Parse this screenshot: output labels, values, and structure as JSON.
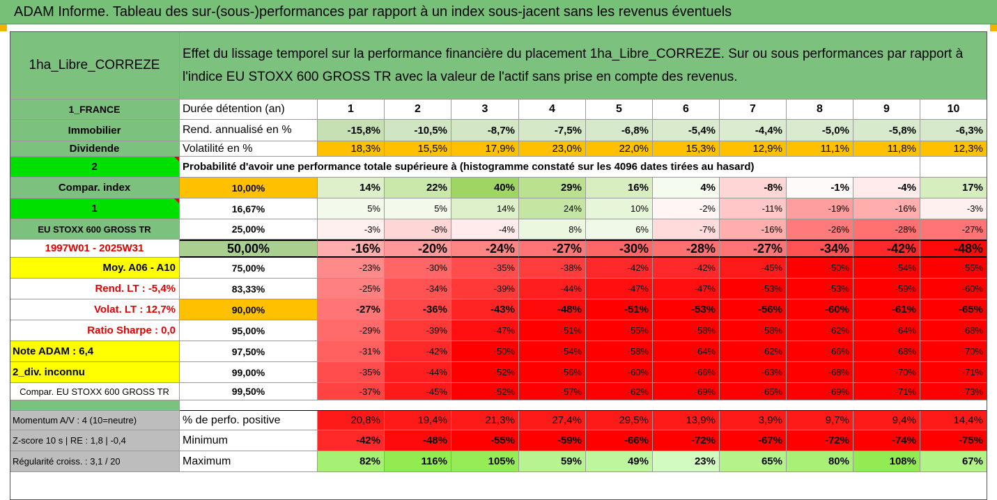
{
  "title": "ADAM Informe. Tableau des sur-(sous-)performances par rapport à un index sous-jacent sans les revenus éventuels",
  "header": {
    "fund": "1ha_Libre_CORREZE",
    "description_line1": "Effet du lissage temporel sur la performance financière du placement 1ha_Libre_CORREZE. Sur ou sous performances par rapport à",
    "description_line2": "l'indice EU STOXX 600 GROSS TR avec la valeur de l'actif sans prise en compte des revenus."
  },
  "left_labels": {
    "country": "1_FRANCE",
    "category": "Immobilier",
    "dividend": "Dividende",
    "two": "2",
    "compar_index": "Compar. index",
    "one": "1",
    "index_name": "EU STOXX 600 GROSS TR",
    "period": "1997W01 - 2025W31",
    "moy": "Moy. A06 - A10",
    "rend_lt": "Rend. LT :   -5,4%",
    "volat_lt": "Volat. LT :   12,7%",
    "sharpe": "Ratio Sharpe :    0,0",
    "note": "Note ADAM : 6,4",
    "div": "2_div. inconnu",
    "compar_full": "Compar. EU STOXX 600 GROSS TR",
    "momentum": "Momentum A/V : 4 (10=neutre)",
    "zscore": "Z-score 10 s  |  RE : 1,8  |  -0,4",
    "regularite": "Régularité croiss. : 3,1 / 20"
  },
  "row_labels": {
    "duree": "Durée détention (an)",
    "rend": "Rend. annualisé en %",
    "volat": "Volatilité en %",
    "probability": "Probabilité d'avoir une performance totale supérieure à (histogramme constaté sur les 4096 dates tirées au hasard)",
    "perfo_pos": "% de perfo. positive",
    "minimum": "Minimum",
    "maximum": "Maximum"
  },
  "years": [
    "1",
    "2",
    "3",
    "4",
    "5",
    "6",
    "7",
    "8",
    "9",
    "10"
  ],
  "rend": [
    "-15,8%",
    "-10,5%",
    "-8,7%",
    "-7,5%",
    "-6,8%",
    "-5,4%",
    "-4,4%",
    "-5,0%",
    "-5,8%",
    "-6,3%"
  ],
  "volat": [
    "18,3%",
    "15,5%",
    "17,9%",
    "23,0%",
    "22,0%",
    "15,3%",
    "12,9%",
    "11,1%",
    "11,8%",
    "12,3%"
  ],
  "percentiles": [
    {
      "p": "10,00%",
      "values": [
        "14%",
        "22%",
        "40%",
        "29%",
        "16%",
        "4%",
        "-8%",
        "-1%",
        "-4%",
        "17%"
      ]
    },
    {
      "p": "16,67%",
      "values": [
        "5%",
        "5%",
        "14%",
        "24%",
        "10%",
        "-2%",
        "-11%",
        "-19%",
        "-16%",
        "-3%"
      ]
    },
    {
      "p": "25,00%",
      "values": [
        "-3%",
        "-8%",
        "-4%",
        "8%",
        "6%",
        "-7%",
        "-16%",
        "-26%",
        "-28%",
        "-27%"
      ]
    },
    {
      "p": "50,00%",
      "values": [
        "-16%",
        "-20%",
        "-24%",
        "-27%",
        "-30%",
        "-28%",
        "-27%",
        "-34%",
        "-42%",
        "-48%"
      ]
    },
    {
      "p": "75,00%",
      "values": [
        "-23%",
        "-30%",
        "-35%",
        "-38%",
        "-42%",
        "-42%",
        "-45%",
        "-50%",
        "-54%",
        "-55%"
      ]
    },
    {
      "p": "83,33%",
      "values": [
        "-25%",
        "-34%",
        "-39%",
        "-44%",
        "-47%",
        "-47%",
        "-53%",
        "-53%",
        "-59%",
        "-60%"
      ]
    },
    {
      "p": "90,00%",
      "values": [
        "-27%",
        "-36%",
        "-43%",
        "-48%",
        "-51%",
        "-53%",
        "-56%",
        "-60%",
        "-61%",
        "-65%"
      ]
    },
    {
      "p": "95,00%",
      "values": [
        "-29%",
        "-39%",
        "-47%",
        "-51%",
        "-55%",
        "-58%",
        "-58%",
        "-62%",
        "-64%",
        "-68%"
      ]
    },
    {
      "p": "97,50%",
      "values": [
        "-31%",
        "-42%",
        "-50%",
        "-54%",
        "-58%",
        "-64%",
        "-62%",
        "-66%",
        "-68%",
        "-70%"
      ]
    },
    {
      "p": "99,00%",
      "values": [
        "-35%",
        "-44%",
        "-52%",
        "-56%",
        "-60%",
        "-66%",
        "-63%",
        "-68%",
        "-70%",
        "-71%"
      ]
    },
    {
      "p": "99,50%",
      "values": [
        "-37%",
        "-45%",
        "-52%",
        "-57%",
        "-62%",
        "-69%",
        "-65%",
        "-69%",
        "-71%",
        "-73%"
      ]
    }
  ],
  "perfo_pos": [
    "20,8%",
    "19,4%",
    "21,3%",
    "27,4%",
    "29,5%",
    "13,9%",
    "3,9%",
    "9,7%",
    "9,4%",
    "14,4%"
  ],
  "minimum": [
    "-42%",
    "-48%",
    "-55%",
    "-59%",
    "-66%",
    "-72%",
    "-67%",
    "-72%",
    "-74%",
    "-75%"
  ],
  "maximum": [
    "82%",
    "116%",
    "105%",
    "59%",
    "49%",
    "23%",
    "65%",
    "80%",
    "108%",
    "67%"
  ],
  "colors": {
    "banner": "#76c177",
    "label_green": "#7dc17e",
    "orange": "#ffc000",
    "yellow": "#ffff00",
    "lime": "#00e000",
    "red": "#ff0000"
  }
}
